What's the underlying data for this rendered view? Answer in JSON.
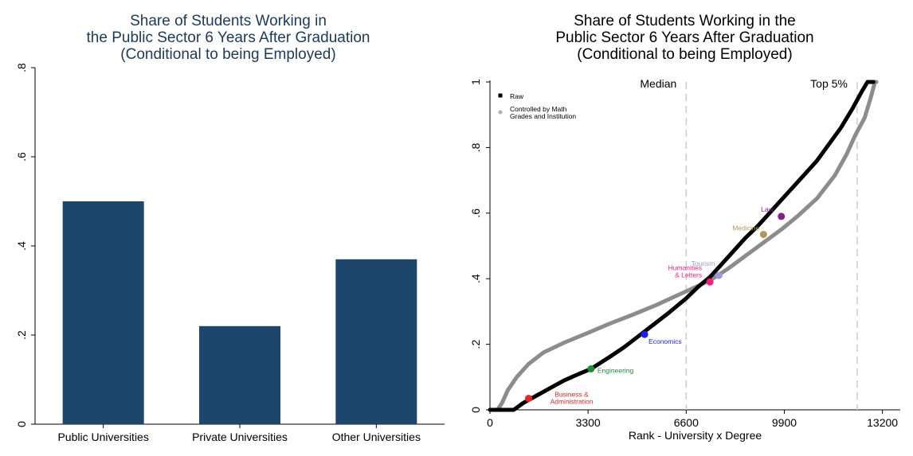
{
  "chart_data": [
    {
      "type": "bar",
      "title": [
        "Share of Students Working in",
        "the Public Sector 6 Years After Graduation",
        "(Conditional to being Employed)"
      ],
      "categories": [
        "Public Universities",
        "Private Universities",
        "Other Universities"
      ],
      "values": [
        0.5,
        0.22,
        0.37
      ],
      "ylim": [
        0,
        0.8
      ],
      "yticks": [
        0,
        0.2,
        0.4,
        0.6,
        0.8
      ],
      "ytick_labels": [
        "0",
        ".2",
        ".4",
        ".6",
        ".8"
      ],
      "bar_color": "#1c466c",
      "grid": false
    },
    {
      "type": "line",
      "title": [
        "Share of Students Working in the",
        "Public Sector 6 Years After Graduation",
        "(Conditional to being Employed)"
      ],
      "xlabel": "Rank - University x Degree",
      "xlim": [
        0,
        13800
      ],
      "ylim": [
        0,
        1
      ],
      "xticks": [
        0,
        3300,
        6600,
        9900,
        13200
      ],
      "xtick_labels": [
        "0",
        "3300",
        "6600",
        "9900",
        "13200"
      ],
      "yticks": [
        0,
        0.2,
        0.4,
        0.6,
        0.8,
        1
      ],
      "ytick_labels": [
        "0",
        ".2",
        ".4",
        ".6",
        ".8",
        "1"
      ],
      "legend_position": "top-left",
      "series": [
        {
          "name": "Raw",
          "color": "#000000",
          "x": [
            0,
            400,
            800,
            950,
            1100,
            1300,
            1500,
            2000,
            2500,
            3000,
            3400,
            4000,
            4500,
            5000,
            5500,
            6000,
            6600,
            7000,
            7400,
            7800,
            8200,
            8600,
            9000,
            9400,
            9800,
            10200,
            10600,
            11000,
            11400,
            11800,
            12200,
            12500,
            12700,
            12800,
            12900
          ],
          "y": [
            0.0,
            0.0,
            0.0,
            0.01,
            0.02,
            0.03,
            0.04,
            0.065,
            0.09,
            0.11,
            0.125,
            0.16,
            0.19,
            0.225,
            0.26,
            0.295,
            0.34,
            0.375,
            0.405,
            0.445,
            0.485,
            0.525,
            0.56,
            0.6,
            0.64,
            0.68,
            0.72,
            0.76,
            0.81,
            0.86,
            0.92,
            0.97,
            1.0,
            1.0,
            1.0
          ],
          "line_width": 5
        },
        {
          "name": "Controlled by Math Grades and Institution",
          "label_lines": [
            "Controlled by Math",
            "Grades and Institution"
          ],
          "color": "#8c8c8c",
          "x": [
            0,
            250,
            400,
            600,
            900,
            1300,
            1800,
            2500,
            3300,
            4000,
            4800,
            5600,
            6200,
            6800,
            7400,
            8000,
            8600,
            9200,
            9800,
            10400,
            11000,
            11600,
            12000,
            12300,
            12600,
            12800,
            12950,
            13000
          ],
          "y": [
            0.0,
            0.0,
            0.02,
            0.06,
            0.1,
            0.14,
            0.175,
            0.205,
            0.235,
            0.262,
            0.29,
            0.32,
            0.345,
            0.37,
            0.395,
            0.43,
            0.47,
            0.51,
            0.55,
            0.595,
            0.645,
            0.715,
            0.78,
            0.84,
            0.89,
            0.95,
            1.0,
            1.0
          ],
          "line_width": 5
        }
      ],
      "reference_lines": [
        {
          "x": 6600,
          "label": "Median"
        },
        {
          "x": 12350,
          "label": "Top 5%"
        }
      ],
      "points": [
        {
          "label": "Business & Administration",
          "label_lines": [
            "Business &",
            "Administration"
          ],
          "x": 1300,
          "y": 0.035,
          "color": "#e3262a"
        },
        {
          "label": "Engineering",
          "x": 3400,
          "y": 0.125,
          "color": "#1e8c36"
        },
        {
          "label": "Economics",
          "x": 5200,
          "y": 0.23,
          "color": "#1a1aff"
        },
        {
          "label": "Humanities & Letters",
          "label_lines": [
            "Humanities",
            "& Letters"
          ],
          "x": 7400,
          "y": 0.39,
          "color": "#ff1a7d"
        },
        {
          "label": "Tourism",
          "x": 7700,
          "y": 0.41,
          "color": "#9a9ad6"
        },
        {
          "label": "Medicine",
          "x": 9200,
          "y": 0.535,
          "color": "#b3965c"
        },
        {
          "label": "Law",
          "x": 9800,
          "y": 0.59,
          "color": "#8b1a8b"
        }
      ]
    }
  ]
}
